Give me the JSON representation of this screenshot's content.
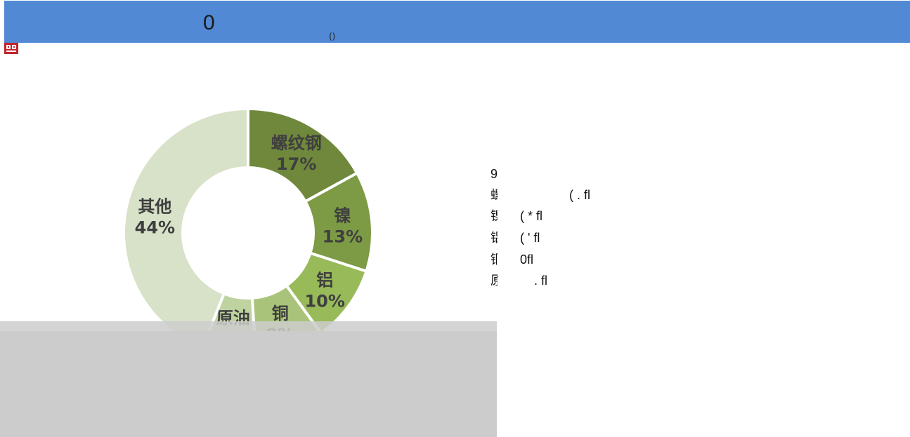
{
  "header": {
    "title": "0",
    "mark": "()",
    "bar_color": "#5289d4"
  },
  "logo": {
    "icon": "app-logo-icon"
  },
  "chart_data": {
    "type": "pie",
    "donut": true,
    "start_angle_deg": 0,
    "direction": "clockwise",
    "labels": [
      "螺纹钢",
      "镍",
      "铝",
      "铜",
      "原油",
      "其他"
    ],
    "values": [
      17,
      13,
      10,
      9,
      7,
      44
    ],
    "value_labels": [
      "17%",
      "13%",
      "10%",
      "9%",
      "7%",
      "44%"
    ],
    "colors": [
      "#6f883b",
      "#7d9a45",
      "#98ba59",
      "#a9c47a",
      "#bfd3a1",
      "#d7e2c8"
    ],
    "title": "",
    "legend": "none"
  },
  "side_list": {
    "heading": "9",
    "rows": [
      {
        "glyph": "螺",
        "value": "( . fl"
      },
      {
        "glyph": "镍",
        "value": "( * fl"
      },
      {
        "glyph": "铝",
        "value": "( ' fl"
      },
      {
        "glyph": "铜",
        "value": "0fl"
      },
      {
        "glyph": "原",
        "value": ". fl"
      }
    ]
  }
}
